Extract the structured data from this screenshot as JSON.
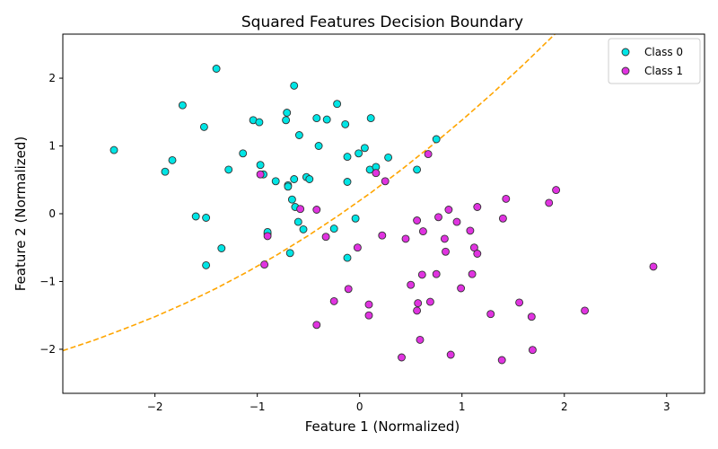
{
  "chart_data": {
    "type": "scatter",
    "title": "Squared Features Decision Boundary",
    "xlabel": "Feature 1 (Normalized)",
    "ylabel": "Feature 2 (Normalized)",
    "xlim": [
      -2.9,
      3.37
    ],
    "ylim": [
      -2.65,
      2.65
    ],
    "xticks": [
      -2,
      -1,
      0,
      1,
      2,
      3
    ],
    "yticks": [
      -2,
      -1,
      0,
      1,
      2
    ],
    "xtick_labels": [
      "−2",
      "−1",
      "0",
      "1",
      "2",
      "3"
    ],
    "ytick_labels": [
      "−2",
      "−1",
      "0",
      "1",
      "2"
    ],
    "grid": false,
    "legend_position": "top-right",
    "boundary": {
      "style": "dashed",
      "color": "#FFA500",
      "curve": [
        [
          -2.9,
          -2.02
        ],
        [
          -2.6,
          -1.87
        ],
        [
          -2.3,
          -1.7
        ],
        [
          -2.0,
          -1.52
        ],
        [
          -1.7,
          -1.32
        ],
        [
          -1.4,
          -1.1
        ],
        [
          -1.1,
          -0.86
        ],
        [
          -0.8,
          -0.6
        ],
        [
          -0.5,
          -0.32
        ],
        [
          -0.2,
          -0.02
        ],
        [
          0.1,
          0.3
        ],
        [
          0.4,
          0.64
        ],
        [
          0.7,
          1.0
        ],
        [
          1.0,
          1.38
        ],
        [
          1.3,
          1.78
        ],
        [
          1.6,
          2.2
        ],
        [
          1.9,
          2.64
        ],
        [
          2.0,
          2.79
        ]
      ]
    },
    "series": [
      {
        "name": "Class 0",
        "color": "#00E5E5",
        "points": [
          [
            -2.4,
            0.94
          ],
          [
            -1.9,
            0.62
          ],
          [
            -1.83,
            0.79
          ],
          [
            -1.73,
            1.6
          ],
          [
            -1.52,
            1.28
          ],
          [
            -1.4,
            2.14
          ],
          [
            -1.28,
            0.65
          ],
          [
            -1.14,
            0.89
          ],
          [
            -1.04,
            1.38
          ],
          [
            -0.98,
            1.35
          ],
          [
            -0.97,
            0.72
          ],
          [
            -0.94,
            0.58
          ],
          [
            -0.82,
            0.48
          ],
          [
            -0.72,
            1.38
          ],
          [
            -0.71,
            1.49
          ],
          [
            -0.7,
            0.42
          ],
          [
            -0.7,
            0.4
          ],
          [
            -0.66,
            0.21
          ],
          [
            -0.64,
            1.89
          ],
          [
            -0.64,
            0.51
          ],
          [
            -0.63,
            0.1
          ],
          [
            -0.6,
            -0.12
          ],
          [
            -0.59,
            1.16
          ],
          [
            -0.55,
            -0.23
          ],
          [
            -0.52,
            0.54
          ],
          [
            -0.49,
            0.51
          ],
          [
            -0.42,
            1.41
          ],
          [
            -0.4,
            1.0
          ],
          [
            -0.32,
            1.39
          ],
          [
            -0.25,
            -0.22
          ],
          [
            -0.22,
            1.62
          ],
          [
            -0.14,
            1.32
          ],
          [
            -0.12,
            0.84
          ],
          [
            -0.12,
            0.47
          ],
          [
            -0.12,
            -0.65
          ],
          [
            -0.04,
            -0.07
          ],
          [
            -0.01,
            0.89
          ],
          [
            0.05,
            0.97
          ],
          [
            0.1,
            0.65
          ],
          [
            0.11,
            1.41
          ],
          [
            0.16,
            0.69
          ],
          [
            0.28,
            0.83
          ],
          [
            0.56,
            0.65
          ],
          [
            0.75,
            1.1
          ],
          [
            -1.6,
            -0.04
          ],
          [
            -1.5,
            -0.06
          ],
          [
            -1.5,
            -0.76
          ],
          [
            -1.35,
            -0.51
          ],
          [
            -0.9,
            -0.3
          ],
          [
            -0.9,
            -0.27
          ],
          [
            -0.68,
            -0.58
          ]
        ]
      },
      {
        "name": "Class 1",
        "color": "#E033E0",
        "points": [
          [
            -0.97,
            0.58
          ],
          [
            -0.93,
            -0.75
          ],
          [
            -0.9,
            -0.33
          ],
          [
            -0.58,
            0.07
          ],
          [
            -0.42,
            0.06
          ],
          [
            -0.42,
            -1.64
          ],
          [
            -0.33,
            -0.34
          ],
          [
            -0.25,
            -1.29
          ],
          [
            -0.11,
            -1.11
          ],
          [
            -0.02,
            -0.5
          ],
          [
            0.09,
            -1.34
          ],
          [
            0.09,
            -1.5
          ],
          [
            0.16,
            0.6
          ],
          [
            0.22,
            -0.32
          ],
          [
            0.25,
            0.48
          ],
          [
            0.41,
            -2.12
          ],
          [
            0.45,
            -0.37
          ],
          [
            0.5,
            -1.05
          ],
          [
            0.56,
            -0.1
          ],
          [
            0.56,
            -1.43
          ],
          [
            0.57,
            -1.32
          ],
          [
            0.59,
            -1.86
          ],
          [
            0.61,
            -0.9
          ],
          [
            0.62,
            -0.26
          ],
          [
            0.67,
            0.88
          ],
          [
            0.69,
            -1.3
          ],
          [
            0.75,
            -0.89
          ],
          [
            0.77,
            -0.05
          ],
          [
            0.83,
            -0.37
          ],
          [
            0.84,
            -0.56
          ],
          [
            0.87,
            0.06
          ],
          [
            0.89,
            -2.08
          ],
          [
            0.95,
            -0.12
          ],
          [
            0.99,
            -1.1
          ],
          [
            1.08,
            -0.25
          ],
          [
            1.1,
            -0.89
          ],
          [
            1.12,
            -0.5
          ],
          [
            1.15,
            -0.59
          ],
          [
            1.15,
            0.1
          ],
          [
            1.28,
            -1.48
          ],
          [
            1.39,
            -2.16
          ],
          [
            1.4,
            -0.07
          ],
          [
            1.43,
            0.22
          ],
          [
            1.56,
            -1.31
          ],
          [
            1.68,
            -1.52
          ],
          [
            1.69,
            -2.01
          ],
          [
            1.85,
            0.16
          ],
          [
            1.92,
            0.35
          ],
          [
            2.2,
            -1.43
          ],
          [
            2.87,
            -0.78
          ]
        ]
      }
    ]
  }
}
